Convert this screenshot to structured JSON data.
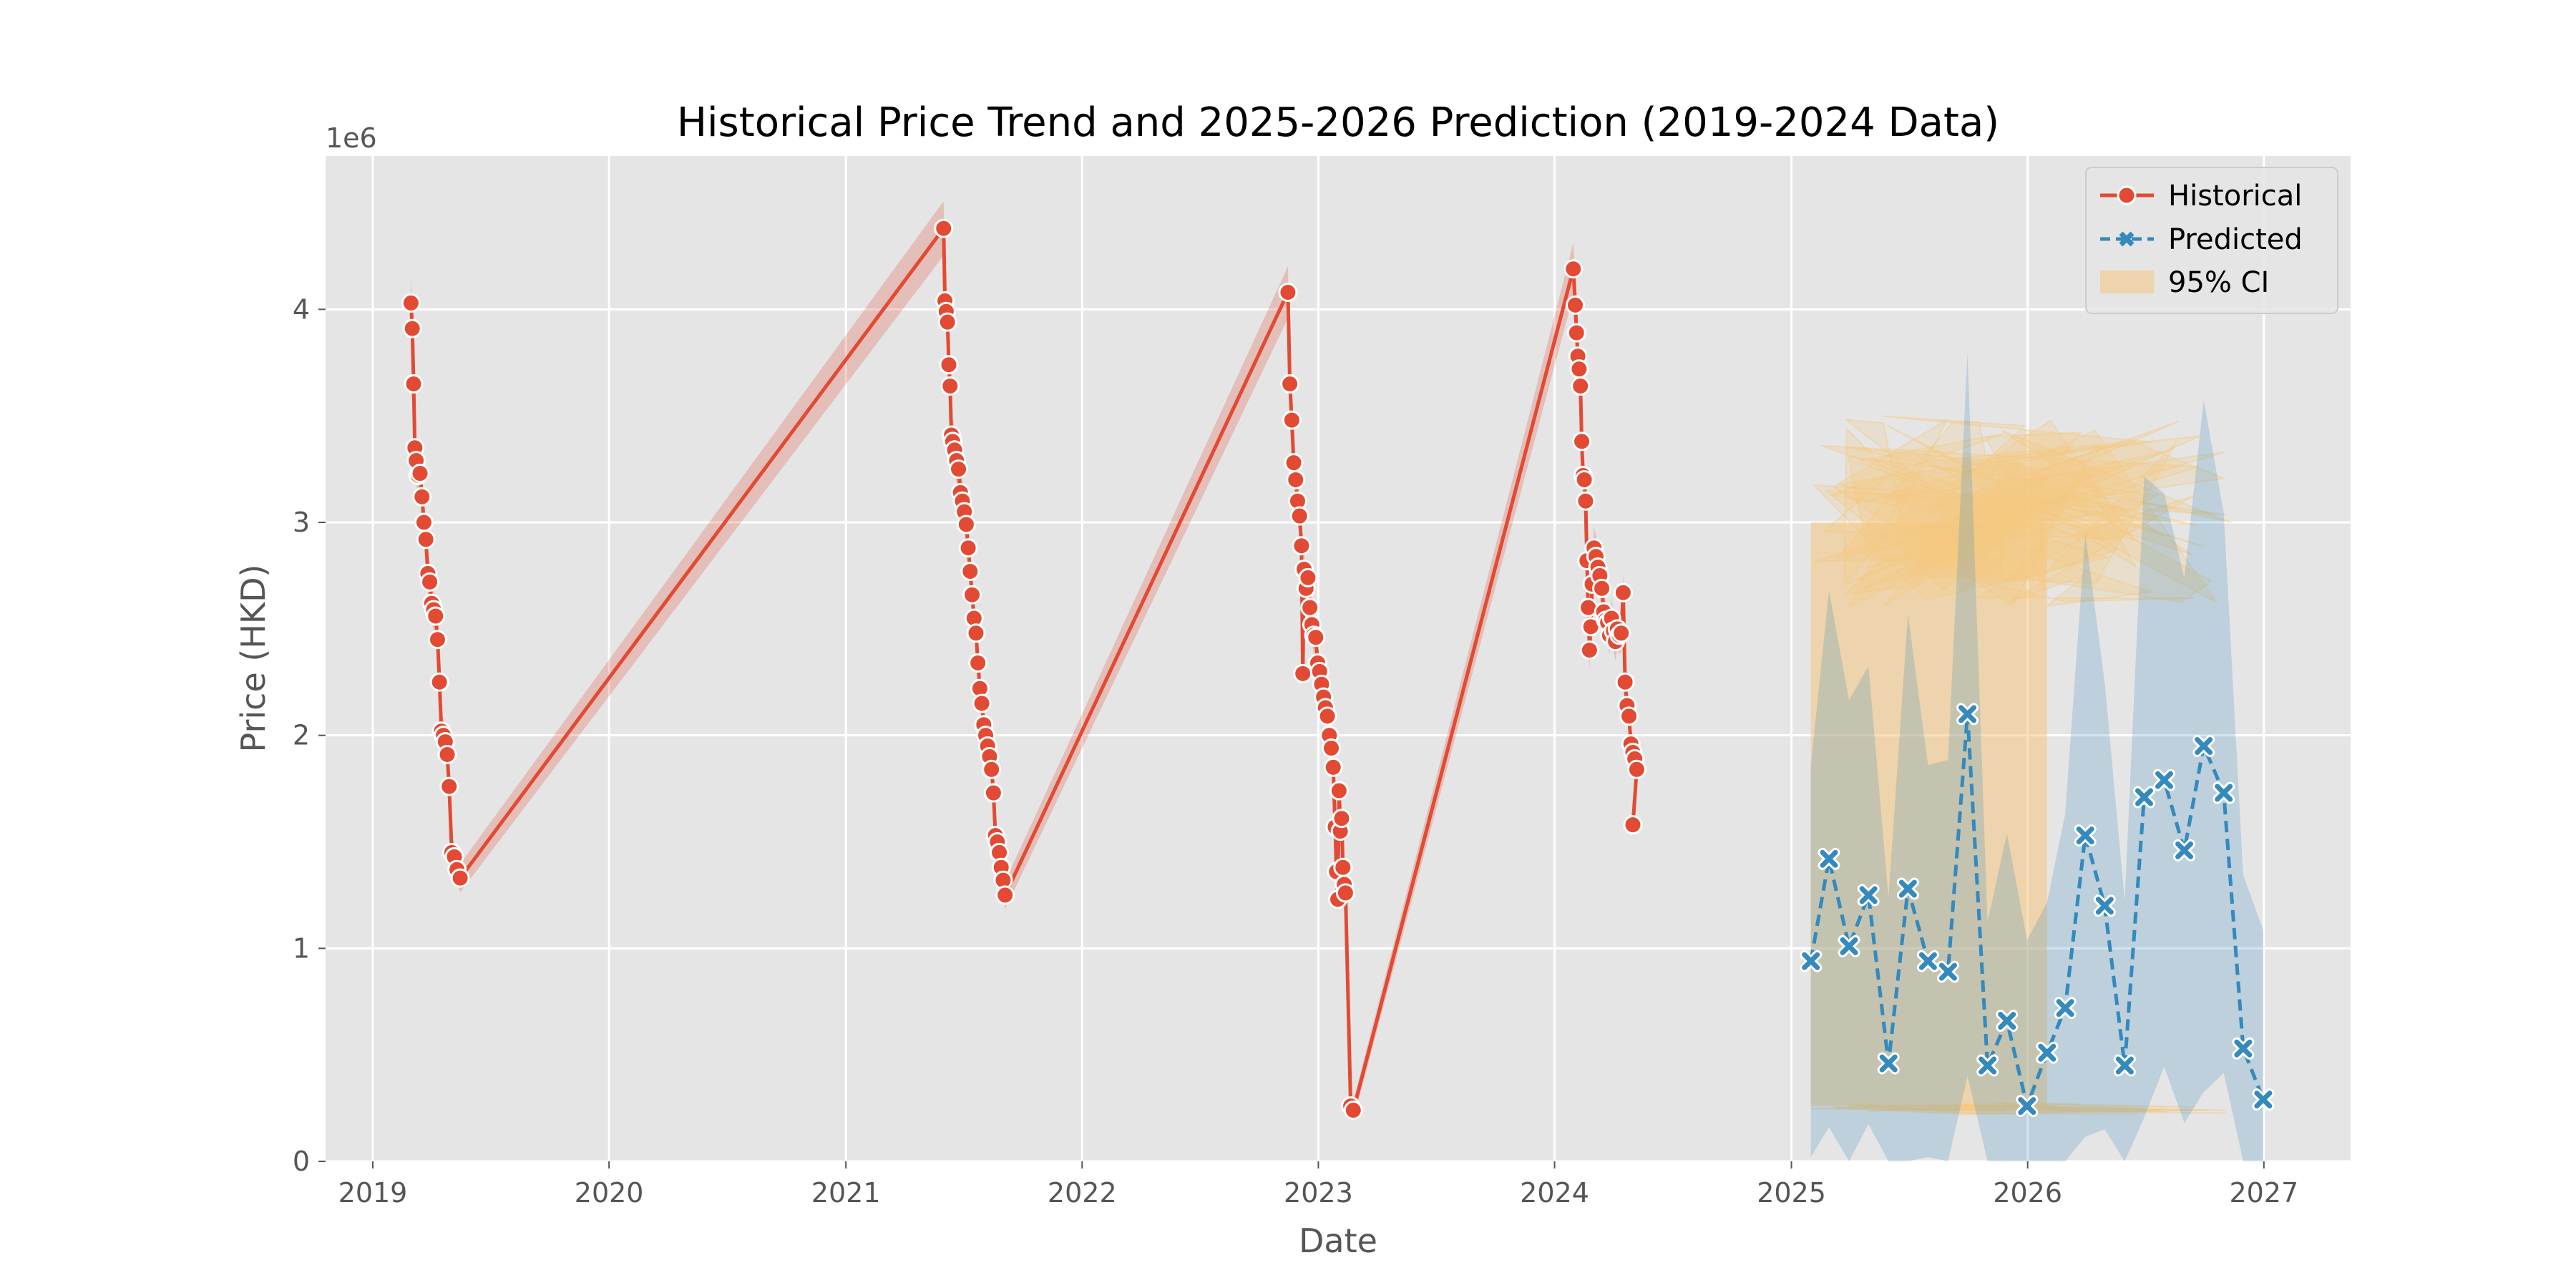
{
  "chart_data": {
    "type": "line",
    "title": "Historical Price Trend and 2025-2026 Prediction (2019-2024 Data)",
    "xlabel": "Date",
    "ylabel": "Price (HKD)",
    "y_offset_label": "1e6",
    "xlim": [
      "2018-10-20",
      "2027-05-15"
    ],
    "ylim": [
      0,
      4.72
    ],
    "x_ticks": [
      "2019",
      "2020",
      "2021",
      "2022",
      "2023",
      "2024",
      "2025",
      "2026",
      "2027"
    ],
    "y_ticks": [
      "0",
      "1",
      "2",
      "3",
      "4"
    ],
    "grid": true,
    "legend_position": "top-right",
    "legend": [
      "Historical",
      "Predicted",
      "95% CI"
    ],
    "colors": {
      "historical": "#E24A33",
      "predicted": "#348ABD",
      "ci": "#F5C77E",
      "plot_bg": "#E5E5E5",
      "grid": "#FFFFFF"
    },
    "series": [
      {
        "name": "Historical",
        "style": "solid line, circle markers",
        "points": [
          [
            "2019-03-01",
            4.03
          ],
          [
            "2019-03-03",
            3.91
          ],
          [
            "2019-03-05",
            3.65
          ],
          [
            "2019-03-07",
            3.35
          ],
          [
            "2019-03-09",
            3.29
          ],
          [
            "2019-03-12",
            3.22
          ],
          [
            "2019-03-15",
            3.23
          ],
          [
            "2019-03-18",
            3.12
          ],
          [
            "2019-03-21",
            3.0
          ],
          [
            "2019-03-24",
            2.92
          ],
          [
            "2019-03-27",
            2.76
          ],
          [
            "2019-03-30",
            2.72
          ],
          [
            "2019-04-02",
            2.62
          ],
          [
            "2019-04-05",
            2.59
          ],
          [
            "2019-04-08",
            2.56
          ],
          [
            "2019-04-11",
            2.45
          ],
          [
            "2019-04-14",
            2.25
          ],
          [
            "2019-04-17",
            2.02
          ],
          [
            "2019-04-20",
            2.0
          ],
          [
            "2019-04-23",
            1.97
          ],
          [
            "2019-04-26",
            1.91
          ],
          [
            "2019-04-29",
            1.76
          ],
          [
            "2019-05-03",
            1.45
          ],
          [
            "2019-05-07",
            1.43
          ],
          [
            "2019-05-11",
            1.37
          ],
          [
            "2019-05-16",
            1.33
          ],
          [
            "2021-06-01",
            4.38
          ],
          [
            "2021-06-03",
            4.04
          ],
          [
            "2021-06-05",
            3.99
          ],
          [
            "2021-06-07",
            3.94
          ],
          [
            "2021-06-09",
            3.74
          ],
          [
            "2021-06-11",
            3.64
          ],
          [
            "2021-06-13",
            3.41
          ],
          [
            "2021-06-15",
            3.38
          ],
          [
            "2021-06-18",
            3.34
          ],
          [
            "2021-06-21",
            3.29
          ],
          [
            "2021-06-24",
            3.25
          ],
          [
            "2021-06-27",
            3.14
          ],
          [
            "2021-06-30",
            3.1
          ],
          [
            "2021-07-03",
            3.05
          ],
          [
            "2021-07-06",
            2.99
          ],
          [
            "2021-07-09",
            2.88
          ],
          [
            "2021-07-12",
            2.77
          ],
          [
            "2021-07-15",
            2.66
          ],
          [
            "2021-07-18",
            2.55
          ],
          [
            "2021-07-21",
            2.48
          ],
          [
            "2021-07-24",
            2.34
          ],
          [
            "2021-07-27",
            2.22
          ],
          [
            "2021-07-30",
            2.15
          ],
          [
            "2021-08-02",
            2.05
          ],
          [
            "2021-08-05",
            2.0
          ],
          [
            "2021-08-08",
            1.95
          ],
          [
            "2021-08-11",
            1.9
          ],
          [
            "2021-08-14",
            1.84
          ],
          [
            "2021-08-17",
            1.73
          ],
          [
            "2021-08-20",
            1.53
          ],
          [
            "2021-08-23",
            1.5
          ],
          [
            "2021-08-26",
            1.45
          ],
          [
            "2021-08-29",
            1.38
          ],
          [
            "2021-09-01",
            1.32
          ],
          [
            "2021-09-04",
            1.25
          ],
          [
            "2022-11-15",
            4.08
          ],
          [
            "2022-11-18",
            3.65
          ],
          [
            "2022-11-21",
            3.48
          ],
          [
            "2022-11-24",
            3.28
          ],
          [
            "2022-11-27",
            3.2
          ],
          [
            "2022-11-30",
            3.1
          ],
          [
            "2022-12-03",
            3.03
          ],
          [
            "2022-12-06",
            2.89
          ],
          [
            "2022-12-08",
            2.29
          ],
          [
            "2022-12-10",
            2.78
          ],
          [
            "2022-12-13",
            2.69
          ],
          [
            "2022-12-16",
            2.74
          ],
          [
            "2022-12-19",
            2.6
          ],
          [
            "2022-12-22",
            2.52
          ],
          [
            "2022-12-25",
            2.47
          ],
          [
            "2022-12-28",
            2.46
          ],
          [
            "2022-12-31",
            2.34
          ],
          [
            "2023-01-03",
            2.3
          ],
          [
            "2023-01-06",
            2.24
          ],
          [
            "2023-01-09",
            2.18
          ],
          [
            "2023-01-12",
            2.13
          ],
          [
            "2023-01-15",
            2.09
          ],
          [
            "2023-01-18",
            2.0
          ],
          [
            "2023-01-21",
            1.94
          ],
          [
            "2023-01-24",
            1.85
          ],
          [
            "2023-01-27",
            1.57
          ],
          [
            "2023-01-29",
            1.36
          ],
          [
            "2023-01-31",
            1.23
          ],
          [
            "2023-02-02",
            1.74
          ],
          [
            "2023-02-04",
            1.55
          ],
          [
            "2023-02-06",
            1.61
          ],
          [
            "2023-02-08",
            1.38
          ],
          [
            "2023-02-10",
            1.3
          ],
          [
            "2023-02-12",
            1.26
          ],
          [
            "2023-02-20",
            0.26
          ],
          [
            "2023-02-24",
            0.24
          ],
          [
            "2024-01-30",
            4.19
          ],
          [
            "2024-02-02",
            4.02
          ],
          [
            "2024-02-04",
            3.89
          ],
          [
            "2024-02-06",
            3.78
          ],
          [
            "2024-02-08",
            3.72
          ],
          [
            "2024-02-10",
            3.64
          ],
          [
            "2024-02-12",
            3.38
          ],
          [
            "2024-02-14",
            3.22
          ],
          [
            "2024-02-16",
            3.2
          ],
          [
            "2024-02-18",
            3.1
          ],
          [
            "2024-02-20",
            2.82
          ],
          [
            "2024-02-22",
            2.6
          ],
          [
            "2024-02-24",
            2.4
          ],
          [
            "2024-02-26",
            2.51
          ],
          [
            "2024-02-28",
            2.71
          ],
          [
            "2024-03-02",
            2.88
          ],
          [
            "2024-03-05",
            2.84
          ],
          [
            "2024-03-08",
            2.79
          ],
          [
            "2024-03-11",
            2.75
          ],
          [
            "2024-03-14",
            2.69
          ],
          [
            "2024-03-17",
            2.58
          ],
          [
            "2024-03-20",
            2.54
          ],
          [
            "2024-03-23",
            2.53
          ],
          [
            "2024-03-26",
            2.47
          ],
          [
            "2024-03-29",
            2.55
          ],
          [
            "2024-04-01",
            2.49
          ],
          [
            "2024-04-04",
            2.44
          ],
          [
            "2024-04-07",
            2.5
          ],
          [
            "2024-04-10",
            2.47
          ],
          [
            "2024-04-13",
            2.48
          ],
          [
            "2024-04-16",
            2.67
          ],
          [
            "2024-04-19",
            2.25
          ],
          [
            "2024-04-22",
            2.14
          ],
          [
            "2024-04-25",
            2.09
          ],
          [
            "2024-04-28",
            1.96
          ],
          [
            "2024-05-01",
            1.92
          ],
          [
            "2024-05-04",
            1.89
          ],
          [
            "2024-05-07",
            1.84
          ],
          [
            "2024-05-01",
            1.58
          ]
        ]
      },
      {
        "name": "Predicted",
        "style": "dashed line, x markers",
        "points": [
          [
            "2025-01-31",
            0.94
          ],
          [
            "2025-02-28",
            1.42
          ],
          [
            "2025-03-31",
            1.01
          ],
          [
            "2025-04-30",
            1.25
          ],
          [
            "2025-05-31",
            0.46
          ],
          [
            "2025-06-30",
            1.28
          ],
          [
            "2025-07-31",
            0.94
          ],
          [
            "2025-08-31",
            0.89
          ],
          [
            "2025-09-30",
            2.1
          ],
          [
            "2025-10-31",
            0.45
          ],
          [
            "2025-11-30",
            0.66
          ],
          [
            "2025-12-31",
            0.26
          ],
          [
            "2026-01-31",
            0.51
          ],
          [
            "2026-02-28",
            0.72
          ],
          [
            "2026-03-31",
            1.53
          ],
          [
            "2026-04-30",
            1.2
          ],
          [
            "2026-05-31",
            0.45
          ],
          [
            "2026-06-30",
            1.71
          ],
          [
            "2026-07-31",
            1.79
          ],
          [
            "2026-08-31",
            1.46
          ],
          [
            "2026-09-30",
            1.95
          ],
          [
            "2026-10-31",
            1.73
          ],
          [
            "2026-11-30",
            0.53
          ],
          [
            "2026-12-31",
            0.29
          ]
        ]
      }
    ],
    "confidence_interval": {
      "name": "95% CI",
      "region": [
        "2025-01-31",
        "2026-11-30"
      ],
      "lower_bound": 0.26,
      "upper_bound": [
        3.0,
        3.5
      ]
    }
  }
}
